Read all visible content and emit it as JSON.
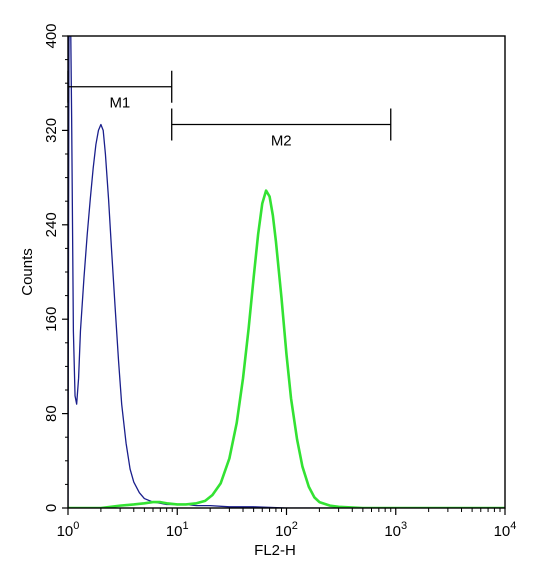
{
  "chart_data": {
    "type": "line",
    "title": "",
    "xlabel": "FL2-H",
    "ylabel": "Counts",
    "x_scale": "log",
    "xlim": [
      1,
      10000
    ],
    "ylim": [
      0,
      400
    ],
    "x_ticks": [
      {
        "value": 1,
        "base": "10",
        "exp": "0"
      },
      {
        "value": 10,
        "base": "10",
        "exp": "1"
      },
      {
        "value": 100,
        "base": "10",
        "exp": "2"
      },
      {
        "value": 1000,
        "base": "10",
        "exp": "3"
      },
      {
        "value": 10000,
        "base": "10",
        "exp": "4"
      }
    ],
    "y_ticks": [
      0,
      80,
      160,
      240,
      320,
      400
    ],
    "grid": false,
    "legend": "none",
    "markers": [
      {
        "label": "M1",
        "x_start": 1,
        "x_end": 8.9,
        "y": 357
      },
      {
        "label": "M2",
        "x_start": 8.9,
        "x_end": 900,
        "y": 325
      }
    ],
    "series": [
      {
        "color": "#1a1f8c",
        "points": [
          [
            1,
            0
          ],
          [
            1.02,
            395
          ],
          [
            1.05,
            440
          ],
          [
            1.08,
            330
          ],
          [
            1.12,
            150
          ],
          [
            1.16,
            95
          ],
          [
            1.2,
            88
          ],
          [
            1.25,
            110
          ],
          [
            1.3,
            150
          ],
          [
            1.4,
            195
          ],
          [
            1.5,
            232
          ],
          [
            1.6,
            262
          ],
          [
            1.7,
            288
          ],
          [
            1.8,
            308
          ],
          [
            1.9,
            320
          ],
          [
            2.0,
            325
          ],
          [
            2.1,
            320
          ],
          [
            2.2,
            300
          ],
          [
            2.35,
            262
          ],
          [
            2.5,
            220
          ],
          [
            2.7,
            170
          ],
          [
            2.9,
            125
          ],
          [
            3.1,
            88
          ],
          [
            3.4,
            55
          ],
          [
            3.7,
            33
          ],
          [
            4.0,
            22
          ],
          [
            4.5,
            13
          ],
          [
            5.0,
            8
          ],
          [
            6.0,
            5
          ],
          [
            7.0,
            4
          ],
          [
            8.0,
            3
          ],
          [
            10,
            3
          ],
          [
            12,
            3
          ],
          [
            15,
            2
          ],
          [
            20,
            2
          ],
          [
            30,
            1
          ],
          [
            50,
            1
          ],
          [
            100,
            0
          ],
          [
            10000,
            0
          ]
        ]
      },
      {
        "color": "#33e233",
        "points": [
          [
            1,
            0
          ],
          [
            2,
            0
          ],
          [
            3,
            2
          ],
          [
            4,
            3
          ],
          [
            5,
            4
          ],
          [
            6,
            5
          ],
          [
            7,
            5
          ],
          [
            8,
            4
          ],
          [
            10,
            3
          ],
          [
            12,
            3
          ],
          [
            15,
            4
          ],
          [
            18,
            6
          ],
          [
            21,
            11
          ],
          [
            25,
            21
          ],
          [
            30,
            42
          ],
          [
            35,
            72
          ],
          [
            40,
            110
          ],
          [
            45,
            152
          ],
          [
            50,
            195
          ],
          [
            55,
            232
          ],
          [
            60,
            258
          ],
          [
            65,
            269
          ],
          [
            70,
            264
          ],
          [
            75,
            248
          ],
          [
            80,
            226
          ],
          [
            90,
            178
          ],
          [
            100,
            130
          ],
          [
            110,
            93
          ],
          [
            125,
            58
          ],
          [
            140,
            35
          ],
          [
            160,
            18
          ],
          [
            180,
            9
          ],
          [
            200,
            5
          ],
          [
            250,
            2
          ],
          [
            300,
            1
          ],
          [
            500,
            0
          ],
          [
            10000,
            0
          ]
        ]
      }
    ]
  }
}
